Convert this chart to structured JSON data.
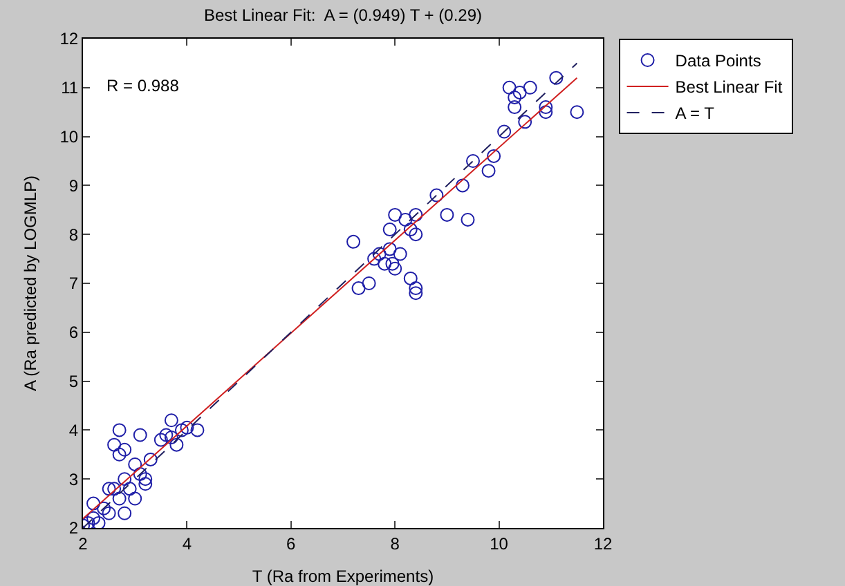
{
  "chart_data": {
    "type": "scatter",
    "title": "Best Linear Fit:  A = (0.949) T + (0.29)",
    "xlabel": "T (Ra from Experiments)",
    "ylabel": "A (Ra predicted by LOGMLP)",
    "annotations": [
      "R = 0.988"
    ],
    "xlim": [
      2,
      12
    ],
    "xticks": [
      2,
      4,
      6,
      8,
      10,
      12
    ],
    "ylim": [
      2,
      12
    ],
    "yticks": [
      2,
      3,
      4,
      5,
      6,
      7,
      8,
      9,
      10,
      11,
      12
    ],
    "grid": false,
    "legend": "top right",
    "series": [
      {
        "name": "Data Points",
        "marker": "circle",
        "color": "#1f1fa8",
        "x": [
          2.0,
          2.1,
          2.2,
          2.3,
          2.2,
          2.4,
          2.5,
          2.6,
          2.7,
          2.6,
          2.7,
          2.7,
          2.8,
          2.8,
          2.9,
          3.0,
          3.0,
          3.1,
          3.2,
          3.1,
          3.3,
          2.8,
          3.5,
          3.6,
          3.7,
          3.8,
          3.9,
          4.0,
          4.2,
          3.7,
          3.2,
          2.5,
          7.2,
          7.3,
          7.5,
          7.6,
          7.7,
          7.8,
          7.9,
          7.9,
          8.0,
          8.1,
          8.2,
          8.3,
          8.3,
          8.4,
          8.4,
          8.4,
          8.4,
          7.95,
          8.0,
          8.8,
          9.0,
          9.3,
          9.4,
          9.5,
          9.8,
          9.9,
          10.1,
          10.2,
          10.3,
          10.4,
          10.6,
          10.3,
          10.9,
          11.1,
          10.9,
          11.5,
          10.5
        ],
        "values": [
          2.05,
          2.1,
          2.2,
          2.1,
          2.5,
          2.4,
          2.3,
          2.8,
          2.6,
          3.7,
          4.0,
          3.5,
          3.6,
          3.0,
          2.8,
          2.6,
          3.3,
          3.1,
          3.0,
          3.9,
          3.4,
          2.3,
          3.8,
          3.9,
          4.2,
          3.7,
          4.0,
          4.05,
          4.0,
          3.85,
          2.9,
          2.8,
          7.85,
          6.9,
          7.0,
          7.5,
          7.6,
          7.4,
          7.7,
          8.1,
          8.4,
          7.6,
          8.3,
          8.1,
          7.1,
          6.9,
          6.8,
          8.0,
          8.4,
          7.4,
          7.3,
          8.8,
          8.4,
          9.0,
          8.3,
          9.5,
          9.3,
          9.6,
          10.1,
          11.0,
          10.8,
          10.9,
          11.0,
          10.6,
          10.6,
          11.2,
          10.5,
          10.5,
          10.3
        ]
      },
      {
        "name": "Best Linear Fit",
        "type": "line",
        "marker": "none",
        "line_style": "solid",
        "color": "#d02020",
        "x": [
          2,
          11.5
        ],
        "values": [
          2.19,
          11.2
        ]
      },
      {
        "name": "A = T",
        "type": "line",
        "marker": "none",
        "line_style": "dashed",
        "color": "#202060",
        "x": [
          2,
          11.5
        ],
        "values": [
          2,
          11.5
        ]
      }
    ]
  }
}
